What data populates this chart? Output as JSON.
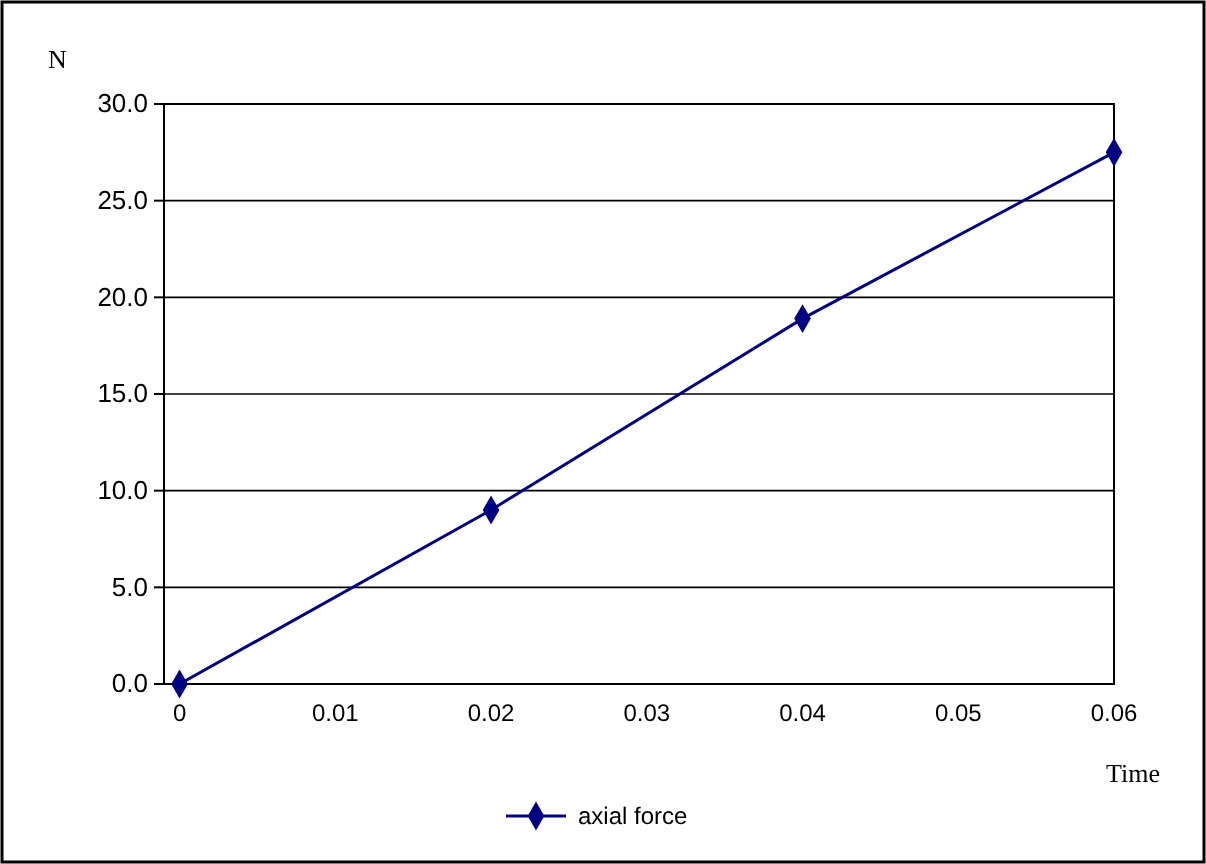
{
  "chart_data": {
    "type": "line",
    "xlabel": "Time",
    "ylabel": "N",
    "x": [
      0,
      0.02,
      0.04,
      0.06
    ],
    "series": [
      {
        "name": "axial force",
        "color": "#000080",
        "values": [
          0,
          9.0,
          18.9,
          27.5
        ]
      }
    ],
    "xlim": [
      -0.001,
      0.06
    ],
    "xticks": [
      0,
      0.01,
      0.02,
      0.03,
      0.04,
      0.05,
      0.06
    ],
    "ylim": [
      0,
      30
    ],
    "yticks": [
      {
        "value": 0,
        "label": "0.0"
      },
      {
        "value": 5,
        "label": "5.0"
      },
      {
        "value": 10,
        "label": "10.0"
      },
      {
        "value": 15,
        "label": "15.0"
      },
      {
        "value": 20,
        "label": "20.0"
      },
      {
        "value": 25,
        "label": "25.0"
      },
      {
        "value": 30,
        "label": "30.0"
      }
    ],
    "grid": "y",
    "legend": "bottom",
    "marker": "diamond",
    "line_style": "solid"
  }
}
